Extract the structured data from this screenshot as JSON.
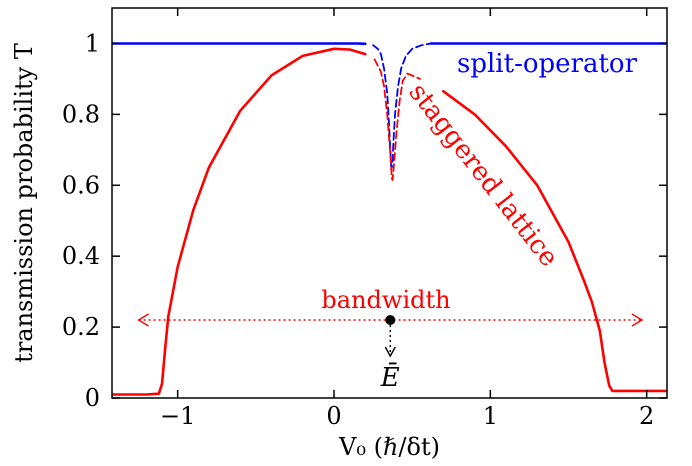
{
  "chart_data": {
    "type": "line",
    "xlabel": "V₀  (ℏ/δt)",
    "ylabel": "transmission probability T",
    "xlim": [
      -1.42,
      2.13
    ],
    "ylim": [
      0,
      1.1
    ],
    "x_ticks": [
      -1,
      0,
      1,
      2
    ],
    "x_tick_labels": [
      "−1",
      "0",
      "1",
      "2"
    ],
    "y_ticks": [
      0,
      0.2,
      0.4,
      0.6,
      0.8,
      1
    ],
    "y_tick_labels": [
      "0",
      "0.2",
      "0.4",
      "0.6",
      "0.8",
      "1"
    ],
    "grid": false,
    "series": [
      {
        "name": "split-operator",
        "color": "#0000ff",
        "points": [
          [
            -1.42,
            1.0
          ],
          [
            -1.2,
            1.0
          ],
          [
            -0.8,
            1.0
          ],
          [
            -0.4,
            1.0
          ],
          [
            0.0,
            1.0
          ],
          [
            0.15,
            1.0
          ],
          [
            0.2,
            0.999
          ],
          [
            0.25,
            0.995
          ],
          [
            0.28,
            0.985
          ],
          [
            0.3,
            0.97
          ],
          [
            0.32,
            0.93
          ],
          [
            0.34,
            0.86
          ],
          [
            0.35,
            0.79
          ],
          [
            0.36,
            0.7
          ],
          [
            0.365,
            0.655
          ],
          [
            0.37,
            0.65
          ],
          [
            0.375,
            0.67
          ],
          [
            0.38,
            0.72
          ],
          [
            0.39,
            0.8
          ],
          [
            0.41,
            0.88
          ],
          [
            0.43,
            0.93
          ],
          [
            0.46,
            0.965
          ],
          [
            0.5,
            0.985
          ],
          [
            0.56,
            0.995
          ],
          [
            0.62,
            1.0
          ],
          [
            0.8,
            1.0
          ],
          [
            1.2,
            1.0
          ],
          [
            1.6,
            1.0
          ],
          [
            2.0,
            1.0
          ],
          [
            2.13,
            1.0
          ]
        ]
      },
      {
        "name": "staggered lattice",
        "color": "#ff0000",
        "points": [
          [
            -1.42,
            0.01
          ],
          [
            -1.2,
            0.01
          ],
          [
            -1.12,
            0.012
          ],
          [
            -1.1,
            0.04
          ],
          [
            -1.08,
            0.14
          ],
          [
            -1.06,
            0.23
          ],
          [
            -1.0,
            0.37
          ],
          [
            -0.9,
            0.53
          ],
          [
            -0.8,
            0.65
          ],
          [
            -0.6,
            0.81
          ],
          [
            -0.4,
            0.91
          ],
          [
            -0.2,
            0.965
          ],
          [
            0.0,
            0.985
          ],
          [
            0.1,
            0.983
          ],
          [
            0.2,
            0.97
          ],
          [
            0.26,
            0.955
          ],
          [
            0.3,
            0.92
          ],
          [
            0.32,
            0.88
          ],
          [
            0.34,
            0.8
          ],
          [
            0.36,
            0.69
          ],
          [
            0.37,
            0.62
          ],
          [
            0.375,
            0.615
          ],
          [
            0.38,
            0.64
          ],
          [
            0.4,
            0.75
          ],
          [
            0.42,
            0.84
          ],
          [
            0.44,
            0.895
          ],
          [
            0.47,
            0.915
          ],
          [
            0.55,
            0.9
          ],
          [
            0.7,
            0.865
          ],
          [
            0.9,
            0.8
          ],
          [
            1.1,
            0.71
          ],
          [
            1.3,
            0.6
          ],
          [
            1.5,
            0.44
          ],
          [
            1.6,
            0.33
          ],
          [
            1.65,
            0.27
          ],
          [
            1.7,
            0.19
          ],
          [
            1.73,
            0.1
          ],
          [
            1.76,
            0.035
          ],
          [
            1.78,
            0.02
          ],
          [
            1.85,
            0.02
          ],
          [
            2.0,
            0.02
          ],
          [
            2.13,
            0.02
          ]
        ]
      }
    ],
    "annotations": {
      "series_label_blue": "split-operator",
      "series_label_red": "staggered lattice",
      "bandwidth_label": "bandwidth",
      "bandwidth_range": [
        -1.25,
        1.97
      ],
      "bandwidth_y": 0.22,
      "energy_label": "Ē",
      "energy_x": 0.36,
      "energy_y": 0.22
    }
  }
}
